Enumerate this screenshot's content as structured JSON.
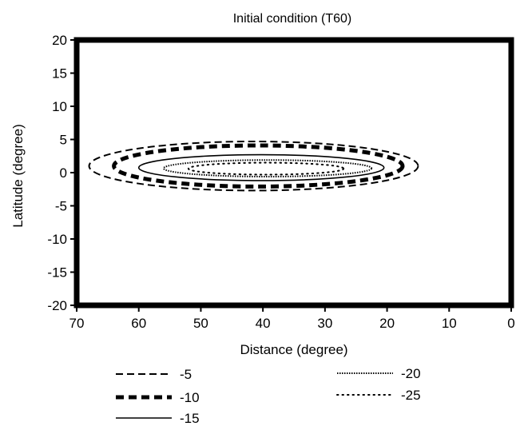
{
  "chart_data": {
    "type": "contour",
    "title": "Initial condition (T60)",
    "xlabel": "Distance (degree)",
    "ylabel": "Latitude (degree)",
    "xlim": [
      70,
      0
    ],
    "ylim": [
      -20,
      20
    ],
    "x_ticks": [
      70,
      60,
      50,
      40,
      30,
      20,
      10,
      0
    ],
    "y_ticks": [
      20,
      15,
      10,
      5,
      0,
      -5,
      -10,
      -15,
      -20
    ],
    "grid": false,
    "legend_position": "bottom",
    "series": [
      {
        "name": "-5",
        "style": "dashed",
        "center": [
          42,
          0.6
        ],
        "x_range": [
          68,
          15
        ],
        "y_range": [
          -2.7,
          4.7
        ]
      },
      {
        "name": "-10",
        "style": "heavy-dashed",
        "center": [
          42,
          0.6
        ],
        "x_range": [
          64,
          17.5
        ],
        "y_range": [
          -2.1,
          4.1
        ]
      },
      {
        "name": "-15",
        "style": "solid",
        "center": [
          42,
          0.6
        ],
        "x_range": [
          60,
          20.5
        ],
        "y_range": [
          -1.2,
          2.7
        ]
      },
      {
        "name": "-20",
        "style": "dense-dotted",
        "center": [
          42,
          0.6
        ],
        "x_range": [
          56,
          22.5
        ],
        "y_range": [
          -0.6,
          1.9
        ]
      },
      {
        "name": "-25",
        "style": "dotted",
        "center": [
          42,
          0.6
        ],
        "x_range": [
          52,
          27
        ],
        "y_range": [
          -0.3,
          1.5
        ]
      }
    ],
    "legend": [
      {
        "label": "-5",
        "style": "dashed"
      },
      {
        "label": "-10",
        "style": "heavy-dashed"
      },
      {
        "label": "-15",
        "style": "solid"
      },
      {
        "label": "-20",
        "style": "dense-dotted"
      },
      {
        "label": "-25",
        "style": "dotted"
      }
    ]
  }
}
